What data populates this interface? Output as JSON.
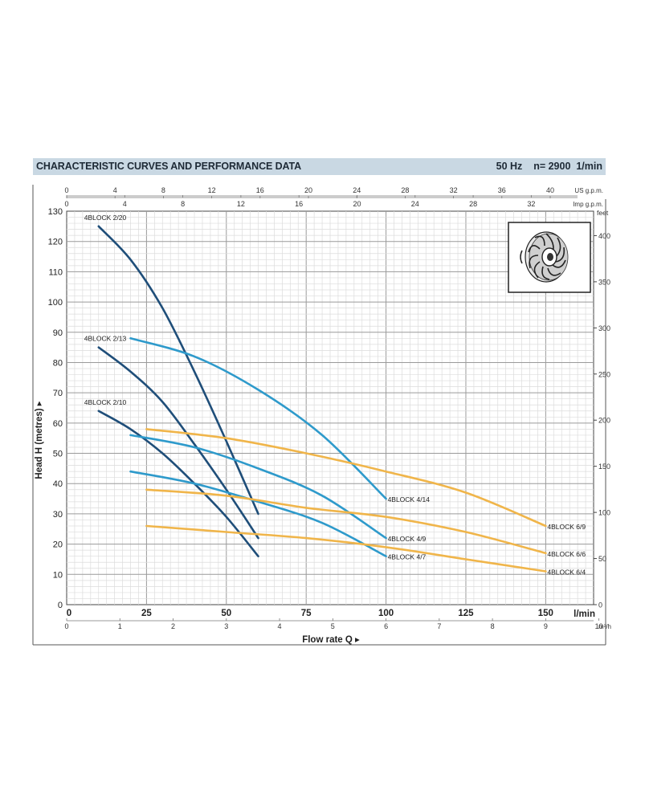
{
  "header": {
    "title": "CHARACTERISTIC CURVES AND PERFORMANCE DATA",
    "frequency": "50 Hz",
    "speed": "n= 2900  1/min"
  },
  "chart_data": {
    "type": "line",
    "ylabel": "Head H (metres)",
    "xlabel": "Flow rate Q",
    "ylim": [
      0,
      130
    ],
    "xlim_lmin": [
      0,
      165
    ],
    "grid": true,
    "axes": {
      "x_lmin": {
        "unit": "l/min",
        "ticks": [
          0,
          25,
          50,
          75,
          100,
          125,
          150
        ]
      },
      "x_m3h": {
        "unit": "m³/h",
        "ticks": [
          0,
          1,
          2,
          3,
          4,
          5,
          6,
          7,
          8,
          9,
          10
        ]
      },
      "x_usgpm": {
        "unit": "US g.p.m.",
        "ticks": [
          0,
          4,
          8,
          12,
          16,
          20,
          24,
          28,
          32,
          36,
          40
        ]
      },
      "x_impgpm": {
        "unit": "Imp g.p.m.",
        "ticks": [
          0,
          4,
          8,
          12,
          16,
          20,
          24,
          28,
          32
        ]
      },
      "y_m": {
        "ticks": [
          0,
          10,
          20,
          30,
          40,
          50,
          60,
          70,
          80,
          90,
          100,
          110,
          120,
          130
        ]
      },
      "y_feet": {
        "unit": "feet",
        "ticks": [
          0,
          50,
          100,
          150,
          200,
          250,
          300,
          350,
          400
        ]
      }
    },
    "series": [
      {
        "name": "4BLOCK 2/20",
        "color": "#1f4e79",
        "points": [
          [
            10,
            125
          ],
          [
            20,
            114
          ],
          [
            30,
            98
          ],
          [
            40,
            77
          ],
          [
            50,
            54
          ],
          [
            60,
            30
          ]
        ]
      },
      {
        "name": "4BLOCK 2/13",
        "color": "#1f4e79",
        "points": [
          [
            10,
            85
          ],
          [
            20,
            77
          ],
          [
            30,
            67
          ],
          [
            40,
            53
          ],
          [
            50,
            38
          ],
          [
            60,
            22
          ]
        ]
      },
      {
        "name": "4BLOCK 2/10",
        "color": "#1f4e79",
        "points": [
          [
            10,
            64
          ],
          [
            20,
            58
          ],
          [
            30,
            50
          ],
          [
            40,
            40
          ],
          [
            50,
            29
          ],
          [
            60,
            16
          ]
        ]
      },
      {
        "name": "4BLOCK 4/14",
        "color": "#2e9acb",
        "points": [
          [
            20,
            88
          ],
          [
            40,
            82
          ],
          [
            60,
            71
          ],
          [
            80,
            56
          ],
          [
            100,
            35
          ]
        ]
      },
      {
        "name": "4BLOCK 4/9",
        "color": "#2e9acb",
        "points": [
          [
            20,
            56
          ],
          [
            40,
            52
          ],
          [
            60,
            45
          ],
          [
            80,
            36
          ],
          [
            100,
            22
          ]
        ]
      },
      {
        "name": "4BLOCK 4/7",
        "color": "#2e9acb",
        "points": [
          [
            20,
            44
          ],
          [
            40,
            40
          ],
          [
            60,
            34
          ],
          [
            80,
            27
          ],
          [
            100,
            16
          ]
        ]
      },
      {
        "name": "4BLOCK 6/9",
        "color": "#f0b54a",
        "points": [
          [
            25,
            58
          ],
          [
            50,
            55
          ],
          [
            75,
            50
          ],
          [
            100,
            44
          ],
          [
            125,
            37
          ],
          [
            150,
            26
          ]
        ]
      },
      {
        "name": "4BLOCK 6/6",
        "color": "#f0b54a",
        "points": [
          [
            25,
            38
          ],
          [
            50,
            36
          ],
          [
            75,
            32
          ],
          [
            100,
            29
          ],
          [
            125,
            24
          ],
          [
            150,
            17
          ]
        ]
      },
      {
        "name": "4BLOCK 6/4",
        "color": "#f0b54a",
        "points": [
          [
            25,
            26
          ],
          [
            50,
            24
          ],
          [
            75,
            22
          ],
          [
            100,
            19
          ],
          [
            125,
            15
          ],
          [
            150,
            11
          ]
        ]
      }
    ]
  }
}
